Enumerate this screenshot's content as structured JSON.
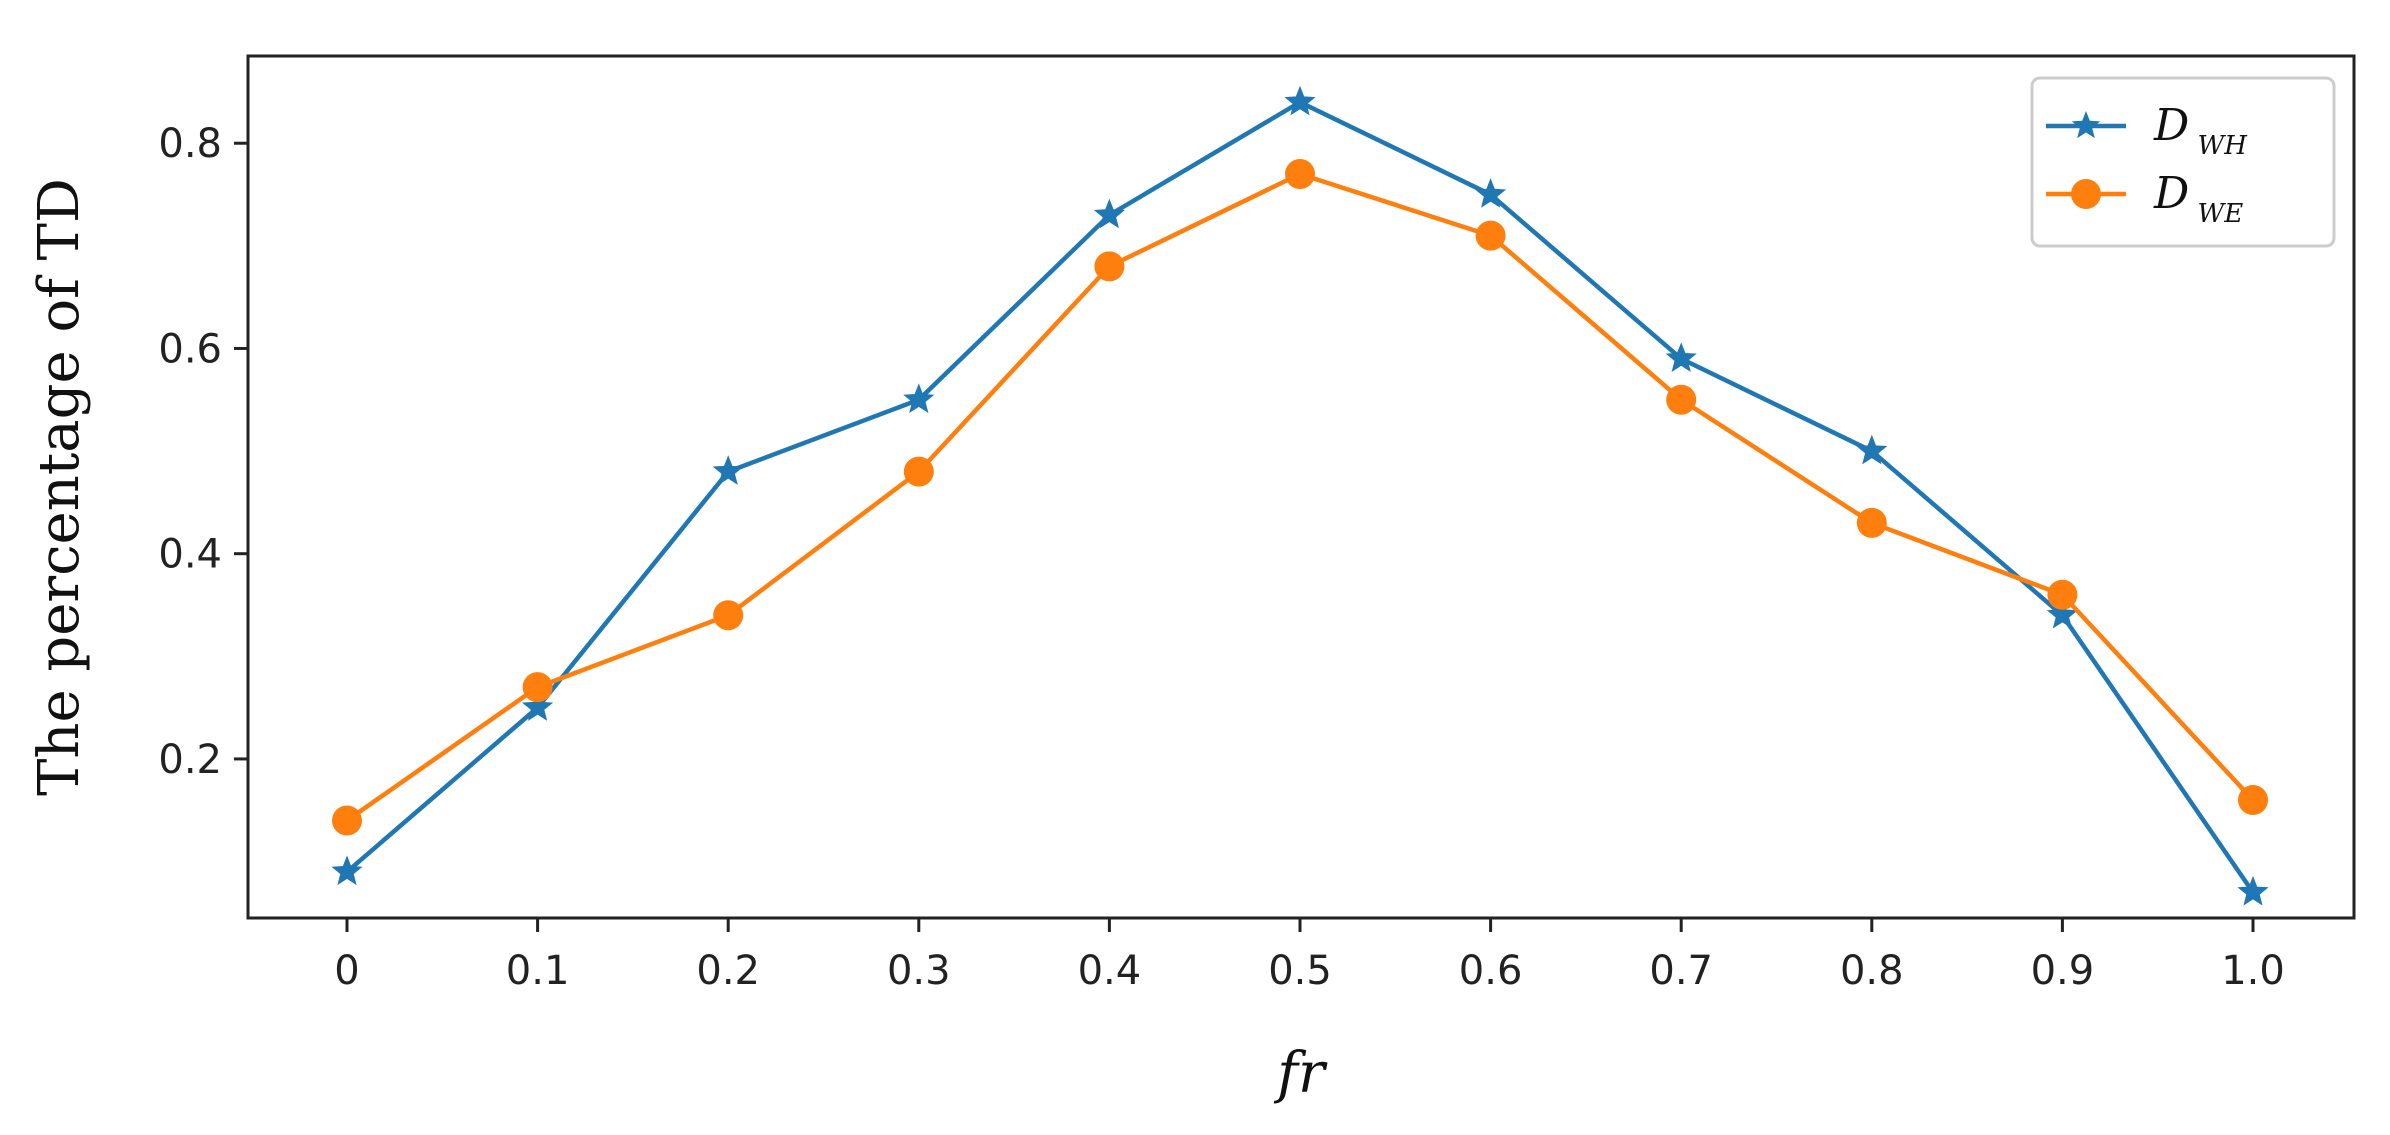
{
  "chart_data": {
    "type": "line",
    "title": "",
    "xlabel": "fr",
    "ylabel": "The percentage of TD",
    "x": [
      0,
      0.1,
      0.2,
      0.3,
      0.4,
      0.5,
      0.6,
      0.7,
      0.8,
      0.9,
      1.0
    ],
    "x_tick_labels": [
      "0",
      "0.1",
      "0.2",
      "0.3",
      "0.4",
      "0.5",
      "0.6",
      "0.7",
      "0.8",
      "0.9",
      "1.0"
    ],
    "y_ticks": [
      0.2,
      0.4,
      0.6,
      0.8
    ],
    "y_tick_labels": [
      "0.2",
      "0.4",
      "0.6",
      "0.8"
    ],
    "ylim": [
      0.045,
      0.885
    ],
    "grid": false,
    "legend_position": "top-right",
    "series": [
      {
        "name": "D",
        "name_subscript": "WH",
        "color": "#1f77b4",
        "marker": "star",
        "values": [
          0.09,
          0.25,
          0.48,
          0.55,
          0.73,
          0.84,
          0.75,
          0.59,
          0.5,
          0.34,
          0.07
        ]
      },
      {
        "name": "D",
        "name_subscript": "WE",
        "color": "#ff7f0e",
        "marker": "circle",
        "values": [
          0.14,
          0.27,
          0.34,
          0.48,
          0.68,
          0.77,
          0.71,
          0.55,
          0.43,
          0.36,
          0.16
        ]
      }
    ]
  }
}
